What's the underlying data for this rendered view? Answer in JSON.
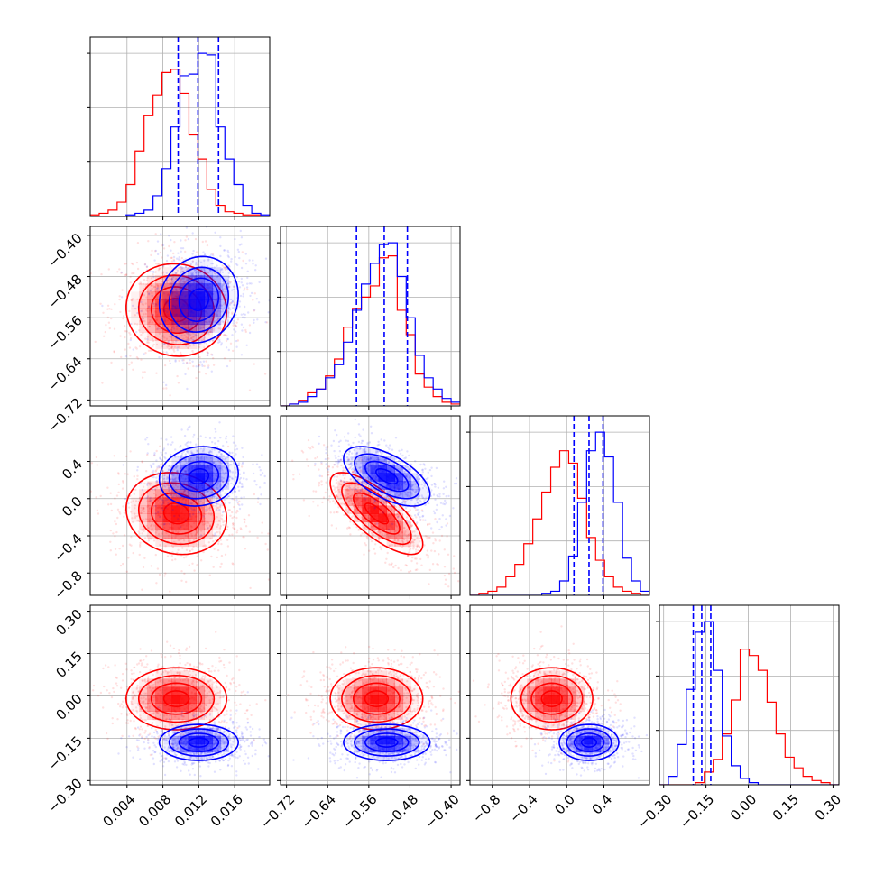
{
  "chart_data": {
    "type": "corner",
    "grid": true,
    "colors": {
      "red": "#ff0000",
      "blue": "#0000ff",
      "grid": "#b0b0b0"
    },
    "parameters": [
      {
        "ticks": [
          0.004,
          0.008,
          0.012,
          0.016
        ],
        "tick_labels": [
          "0.004",
          "0.008",
          "0.012",
          "0.016"
        ],
        "range": [
          -0.0001,
          0.0199
        ]
      },
      {
        "ticks": [
          -0.72,
          -0.64,
          -0.56,
          -0.48,
          -0.4
        ],
        "tick_labels": [
          "−0.72",
          "−0.64",
          "−0.56",
          "−0.48",
          "−0.40"
        ],
        "range": [
          -0.7316,
          -0.3826
        ]
      },
      {
        "ticks": [
          -0.8,
          -0.4,
          0.0,
          0.4
        ],
        "tick_labels": [
          "−0.8",
          "−0.4",
          "0.0",
          "0.4"
        ],
        "range": [
          -1.04,
          0.89
        ]
      },
      {
        "ticks": [
          -0.3,
          -0.15,
          0.0,
          0.15,
          0.3
        ],
        "tick_labels": [
          "−0.30",
          "−0.15",
          "0.00",
          "0.15",
          "0.30"
        ],
        "range": [
          -0.315,
          0.321
        ]
      }
    ],
    "series": [
      {
        "color": "red",
        "mean": [
          0.0095,
          -0.545,
          -0.16,
          -0.01
        ],
        "sd": [
          0.0028,
          0.045,
          0.22,
          0.055
        ],
        "corr": {
          "0-1": -0.05,
          "0-2": -0.12,
          "0-3": 0.0,
          "1-2": -0.75,
          "1-3": 0.0,
          "2-3": 0.0
        },
        "hist": [
          {
            "bins": [
              -0.0001,
              0.0009,
              0.0019,
              0.0029,
              0.0039,
              0.0049,
              0.0059,
              0.0069,
              0.0079,
              0.0089,
              0.0099,
              0.0109,
              0.0119,
              0.0129,
              0.0139,
              0.0149,
              0.0159,
              0.0169,
              0.0179,
              0.0189,
              0.0199
            ],
            "counts": [
              1,
              2,
              4,
              9,
              20,
              41,
              63,
              76,
              90,
              92,
              77,
              51,
              36,
              17,
              7,
              3,
              2,
              1,
              1,
              0
            ]
          },
          {
            "bins": [
              -0.7316,
              -0.7141,
              -0.6967,
              -0.6792,
              -0.6618,
              -0.6443,
              -0.6269,
              -0.6094,
              -0.592,
              -0.5745,
              -0.5571,
              -0.5396,
              -0.5222,
              -0.5047,
              -0.4873,
              -0.4698,
              -0.4524,
              -0.4349,
              -0.4175,
              -0.4,
              -0.3826
            ],
            "counts": [
              0,
              1,
              3,
              7,
              9,
              16,
              25,
              42,
              52,
              58,
              64,
              79,
              80,
              51,
              38,
              17,
              10,
              5,
              2,
              1
            ]
          },
          {
            "bins": [
              -1.04,
              -0.9435,
              -0.847,
              -0.7505,
              -0.654,
              -0.5575,
              -0.461,
              -0.3645,
              -0.268,
              -0.1715,
              -0.075,
              0.0215,
              0.118,
              0.2145,
              0.311,
              0.4075,
              0.504,
              0.6005,
              0.697,
              0.7935,
              0.89
            ],
            "counts": [
              0,
              1,
              2,
              4,
              9,
              15,
              25,
              37,
              50,
              62,
              70,
              64,
              47,
              28,
              17,
              9,
              4,
              2,
              1,
              0
            ]
          },
          {
            "bins": [
              -0.315,
              -0.2832,
              -0.2514,
              -0.2196,
              -0.1878,
              -0.156,
              -0.1242,
              -0.0924,
              -0.0606,
              -0.0288,
              0.003,
              0.0348,
              0.0666,
              0.0984,
              0.1302,
              0.162,
              0.1938,
              0.2256,
              0.2574,
              0.2892,
              0.321
            ],
            "counts": [
              0,
              0,
              0,
              0,
              1,
              6,
              12,
              24,
              40,
              64,
              61,
              54,
              39,
              24,
              13,
              8,
              4,
              2,
              1,
              0
            ]
          }
        ]
      },
      {
        "color": "blue",
        "mean": [
          0.012,
          -0.525,
          0.24,
          -0.165
        ],
        "sd": [
          0.0022,
          0.042,
          0.16,
          0.032
        ],
        "corr": {
          "0-1": 0.1,
          "0-2": 0.1,
          "0-3": 0.0,
          "1-2": -0.6,
          "1-3": 0.0,
          "2-3": 0.0
        },
        "quantiles": [
          [
            0.0097,
            0.0119,
            0.0142
          ],
          [
            -0.584,
            -0.53,
            -0.485
          ],
          [
            0.078,
            0.24,
            0.39
          ],
          [
            -0.195,
            -0.165,
            -0.133
          ]
        ],
        "hist": [
          {
            "bins": [
              -0.0001,
              0.0009,
              0.0019,
              0.0029,
              0.0039,
              0.0049,
              0.0059,
              0.0069,
              0.0079,
              0.0089,
              0.0099,
              0.0109,
              0.0119,
              0.0129,
              0.0139,
              0.0149,
              0.0159,
              0.0169,
              0.0179,
              0.0189,
              0.0199
            ],
            "counts": [
              0,
              0,
              0,
              0,
              1,
              2,
              4,
              13,
              30,
              56,
              88,
              89,
              102,
              101,
              56,
              36,
              20,
              7,
              2,
              1
            ]
          },
          {
            "bins": [
              -0.7316,
              -0.7141,
              -0.6967,
              -0.6792,
              -0.6618,
              -0.6443,
              -0.6269,
              -0.6094,
              -0.592,
              -0.5745,
              -0.5571,
              -0.5396,
              -0.5222,
              -0.5047,
              -0.4873,
              -0.4698,
              -0.4524,
              -0.4349,
              -0.4175,
              -0.4,
              -0.3826
            ],
            "counts": [
              0,
              1,
              2,
              5,
              9,
              15,
              22,
              34,
              51,
              65,
              76,
              86,
              87,
              69,
              47,
              27,
              15,
              9,
              4,
              2
            ]
          },
          {
            "bins": [
              -1.04,
              -0.9435,
              -0.847,
              -0.7505,
              -0.654,
              -0.5575,
              -0.461,
              -0.3645,
              -0.268,
              -0.1715,
              -0.075,
              0.0215,
              0.118,
              0.2145,
              0.311,
              0.4075,
              0.504,
              0.6005,
              0.697,
              0.7935,
              0.89
            ],
            "counts": [
              0,
              0,
              0,
              0,
              0,
              0,
              0,
              0,
              1,
              2,
              7,
              19,
              45,
              70,
              79,
              67,
              45,
              18,
              7,
              2
            ]
          },
          {
            "bins": [
              -0.315,
              -0.2832,
              -0.2514,
              -0.2196,
              -0.1878,
              -0.156,
              -0.1242,
              -0.0924,
              -0.0606,
              -0.0288,
              0.003,
              0.0348,
              0.0666,
              0.0984,
              0.1302,
              0.162,
              0.1938,
              0.2256,
              0.2574,
              0.2892,
              0.321
            ],
            "counts": [
              0,
              4,
              19,
              45,
              72,
              77,
              54,
              23,
              9,
              3,
              1,
              0,
              0,
              0,
              0,
              0,
              0,
              0,
              0,
              0
            ]
          }
        ]
      }
    ]
  }
}
